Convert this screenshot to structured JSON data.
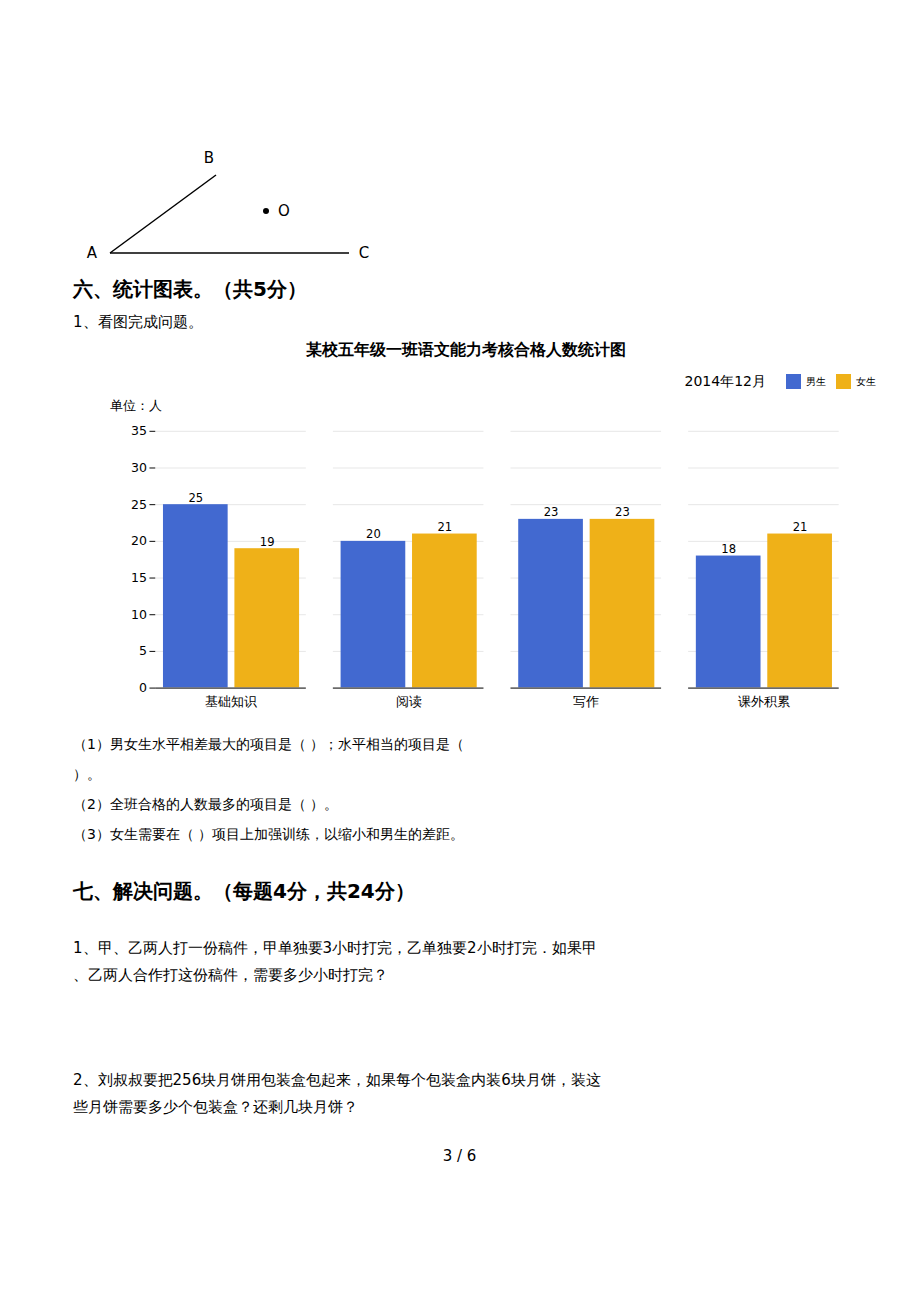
{
  "chart_data": {
    "type": "bar",
    "title": "某校五年级一班语文能力考核合格人数统计图",
    "subtitle": "2014年12月",
    "ylabel": "单位：人",
    "categories": [
      "基础知识",
      "阅读",
      "写作",
      "课外积累"
    ],
    "series": [
      {
        "name": "男生",
        "values": [
          25,
          20,
          23,
          18
        ]
      },
      {
        "name": "女生",
        "values": [
          19,
          21,
          23,
          21
        ]
      }
    ],
    "ylim": [
      0,
      35
    ],
    "yticks": [
      0,
      5,
      10,
      15,
      20,
      25,
      30,
      35
    ],
    "grid": true,
    "legend": "upper right",
    "data_labels": true,
    "annotations": [
      "A",
      "B",
      "C",
      "O",
      "六、统计图表。（共5分）",
      "1、看图完成问题。",
      "（1）男女生水平相差最大的项目是（        ）；水平相当的项目是（",
      "）。",
      "（2）全班合格的人数最多的项目是（        ）。",
      "（3）女生需要在（      ）项目上加强训练，以缩小和男生的差距。",
      "七、解决问题。（每题4分，共24分）",
      "1、甲、乙两人打一份稿件，甲单独要3小时打完，乙单独要2小时打完．如果甲",
      "、乙两人合作打这份稿件，需要多少小时打完？",
      "2、刘叔叔要把256块月饼用包装盒包起来，如果每个包装盒内装6块月饼，装这",
      "些月饼需要多少个包装盒？还剩几块月饼？",
      "3 / 6"
    ]
  }
}
